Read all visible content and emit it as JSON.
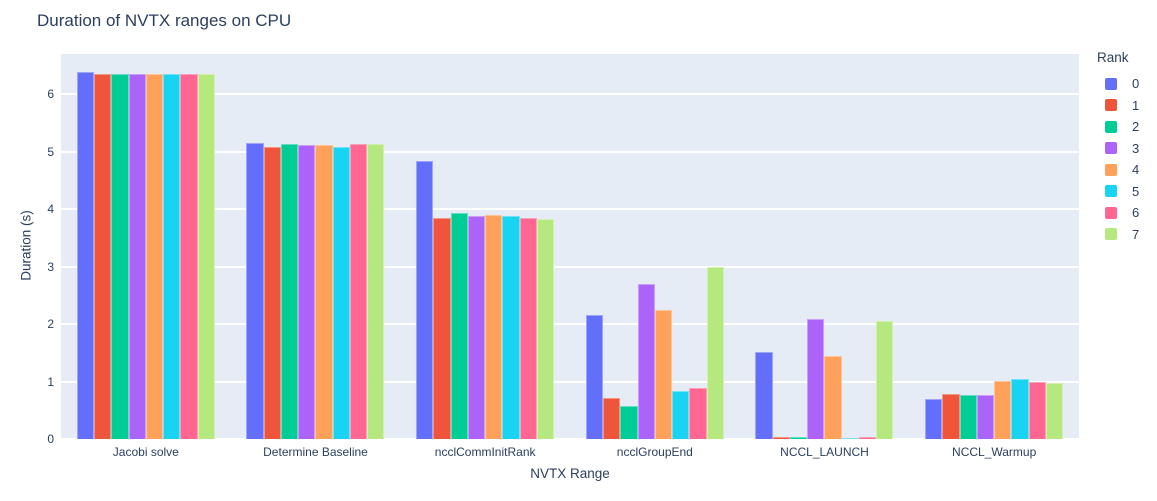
{
  "chart_data": {
    "type": "bar",
    "title": "Duration of NVTX ranges on CPU",
    "xlabel": "NVTX Range",
    "ylabel": "Duration (s)",
    "legend_title": "Rank",
    "legend_position": "right",
    "grid": true,
    "plot_bg_color": "#E5ECF6",
    "grid_color": "#FFFFFF",
    "text_color": "#2a3f5f",
    "ylim": [
      0,
      6.7
    ],
    "yticks": [
      0,
      1,
      2,
      3,
      4,
      5,
      6
    ],
    "categories": [
      "Jacobi solve",
      "Determine Baseline",
      "ncclCommInitRank",
      "ncclGroupEnd",
      "NCCL_LAUNCH",
      "NCCL_Warmup"
    ],
    "series": [
      {
        "name": "0",
        "color": "#636EFA",
        "values": [
          6.38,
          5.15,
          4.84,
          2.15,
          1.51,
          0.7
        ]
      },
      {
        "name": "1",
        "color": "#EF553B",
        "values": [
          6.36,
          5.08,
          3.85,
          0.71,
          0.03,
          0.78
        ]
      },
      {
        "name": "2",
        "color": "#00CC96",
        "values": [
          6.36,
          5.13,
          3.93,
          0.57,
          0.03,
          0.76
        ]
      },
      {
        "name": "3",
        "color": "#AB63FA",
        "values": [
          6.36,
          5.11,
          3.88,
          2.69,
          2.08,
          0.76
        ]
      },
      {
        "name": "4",
        "color": "#FFA15A",
        "values": [
          6.36,
          5.11,
          3.89,
          2.25,
          1.45,
          1.01
        ]
      },
      {
        "name": "5",
        "color": "#19D3F3",
        "values": [
          6.36,
          5.08,
          3.88,
          0.83,
          0.02,
          1.04
        ]
      },
      {
        "name": "6",
        "color": "#FF6692",
        "values": [
          6.36,
          5.13,
          3.85,
          0.88,
          0.03,
          0.99
        ]
      },
      {
        "name": "7",
        "color": "#B6E880",
        "values": [
          6.36,
          5.13,
          3.83,
          2.99,
          2.05,
          0.98
        ]
      }
    ]
  }
}
